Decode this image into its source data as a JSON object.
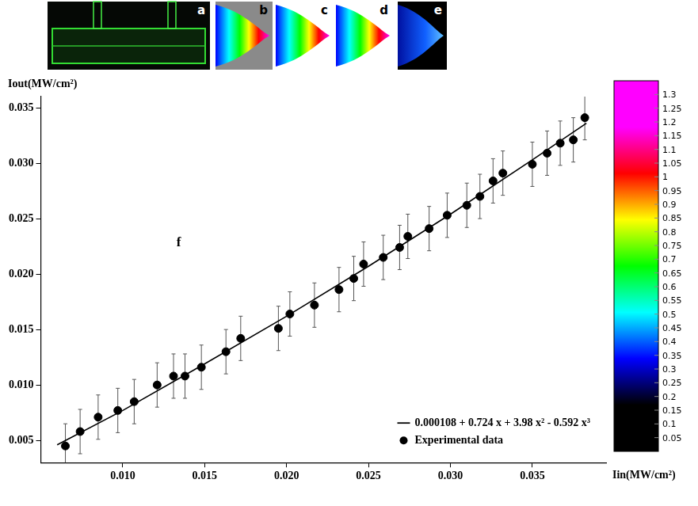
{
  "panel_labels": [
    "a",
    "b",
    "c",
    "d",
    "e"
  ],
  "chart_data": {
    "type": "scatter",
    "label": "f",
    "x_label": "Iin(MW/cm²)",
    "y_label": "Iout(MW/cm²)",
    "xlim": [
      0.005,
      0.0395
    ],
    "xticks": [
      {
        "value": 0.01,
        "label": "0.010"
      },
      0.015,
      {
        "value": 0.02,
        "label": "0.020"
      },
      0.025,
      {
        "value": 0.03,
        "label": "0.030"
      },
      0.035
    ],
    "ylim": [
      0.003,
      0.036
    ],
    "yticks": [
      0.005,
      {
        "value": 0.01,
        "label": "0.010"
      },
      0.015,
      {
        "value": 0.02,
        "label": "0.020"
      },
      0.025,
      {
        "value": 0.03,
        "label": "0.030"
      },
      0.035
    ],
    "grid": false,
    "legend": "bottom-right",
    "series": [
      {
        "name": "0.000108 + 0.724 x + 3.98 x² - 0.592 x³",
        "type": "line",
        "color": "#000000",
        "marker": "none",
        "line_style": "solid",
        "x": [
          0.006,
          0.01,
          0.015,
          0.02,
          0.025,
          0.03,
          0.035,
          0.0383
        ],
        "values": [
          0.0046,
          0.0077,
          0.0119,
          0.0162,
          0.0207,
          0.0254,
          0.0303,
          0.0336
        ]
      },
      {
        "name": "Experimental data",
        "type": "scatter",
        "color": "#000000",
        "marker": "circle",
        "x": [
          0.0065,
          0.0074,
          0.0085,
          0.0097,
          0.0107,
          0.0121,
          0.0131,
          0.0138,
          0.0148,
          0.0163,
          0.0172,
          0.0195,
          0.0202,
          0.0217,
          0.0232,
          0.0241,
          0.0247,
          0.0259,
          0.0269,
          0.0274,
          0.0287,
          0.0298,
          0.031,
          0.0318,
          0.0326,
          0.0332,
          0.035,
          0.0359,
          0.0367,
          0.0375,
          0.0382
        ],
        "values": [
          0.0045,
          0.0058,
          0.0071,
          0.0077,
          0.0085,
          0.01,
          0.0108,
          0.0108,
          0.0116,
          0.013,
          0.0142,
          0.0151,
          0.0164,
          0.0172,
          0.0186,
          0.0196,
          0.0209,
          0.0215,
          0.0224,
          0.0234,
          0.0241,
          0.0253,
          0.0262,
          0.027,
          0.0284,
          0.0291,
          0.0299,
          0.0309,
          0.0318,
          0.0321,
          0.0341
        ],
        "errors": [
          0.002,
          0.002,
          0.002,
          0.002,
          0.002,
          0.002,
          0.002,
          0.002,
          0.002,
          0.002,
          0.002,
          0.002,
          0.002,
          0.002,
          0.002,
          0.002,
          0.002,
          0.002,
          0.002,
          0.002,
          0.002,
          0.002,
          0.002,
          0.002,
          0.002,
          0.002,
          0.002,
          0.002,
          0.002,
          0.002,
          0.002
        ]
      }
    ],
    "colorbar": {
      "lim": [
        0,
        1.35
      ],
      "ticks": [
        0.05,
        0.1,
        0.15,
        0.2,
        0.25,
        0.3,
        0.35,
        0.4,
        0.45,
        0.5,
        0.55,
        0.6,
        0.65,
        0.7,
        0.75,
        0.8,
        0.85,
        0.9,
        0.95,
        1,
        1.05,
        1.1,
        1.15,
        1.2,
        1.25,
        1.3
      ],
      "colors": [
        "#000000",
        "#000000",
        "#0000ff",
        "#00ffff",
        "#00ff00",
        "#ffff00",
        "#ff0000",
        "#ff00ff",
        "#ff00ff"
      ]
    }
  }
}
